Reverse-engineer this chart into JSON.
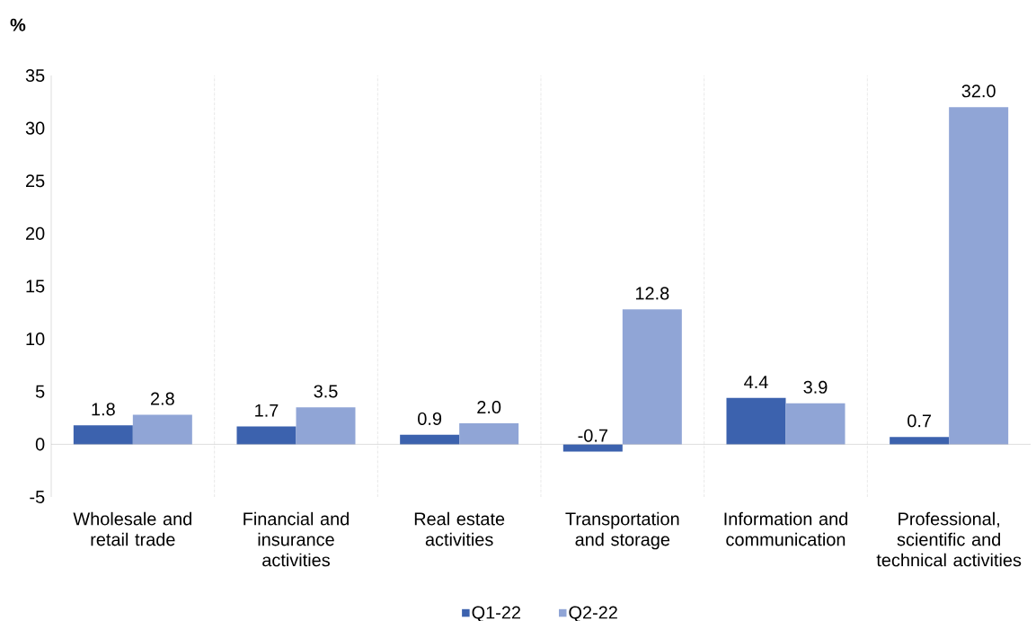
{
  "chart_data": {
    "type": "bar",
    "ylabel": "%",
    "categories": [
      "Wholesale and retail trade",
      "Financial and insurance activities",
      "Real estate activities",
      "Transportation and storage",
      "Information and communication",
      "Professional, scientific and technical activities"
    ],
    "series": [
      {
        "name": "Q1-22",
        "color": "#3c62ae",
        "values": [
          1.8,
          1.7,
          0.9,
          -0.7,
          4.4,
          0.7
        ],
        "value_labels": [
          "1.8",
          "1.7",
          "0.9",
          "-0.7",
          "4.4",
          "0.7"
        ]
      },
      {
        "name": "Q2-22",
        "color": "#90a5d6",
        "values": [
          2.8,
          3.5,
          2.0,
          12.8,
          3.9,
          32.0
        ],
        "value_labels": [
          "2.8",
          "3.5",
          "2.0",
          "12.8",
          "3.9",
          "32.0"
        ]
      }
    ],
    "ylim": [
      -5,
      35
    ],
    "yticks": [
      -5,
      0,
      5,
      10,
      15,
      20,
      25,
      30,
      35
    ],
    "grid": "x",
    "legend": "bottom"
  }
}
